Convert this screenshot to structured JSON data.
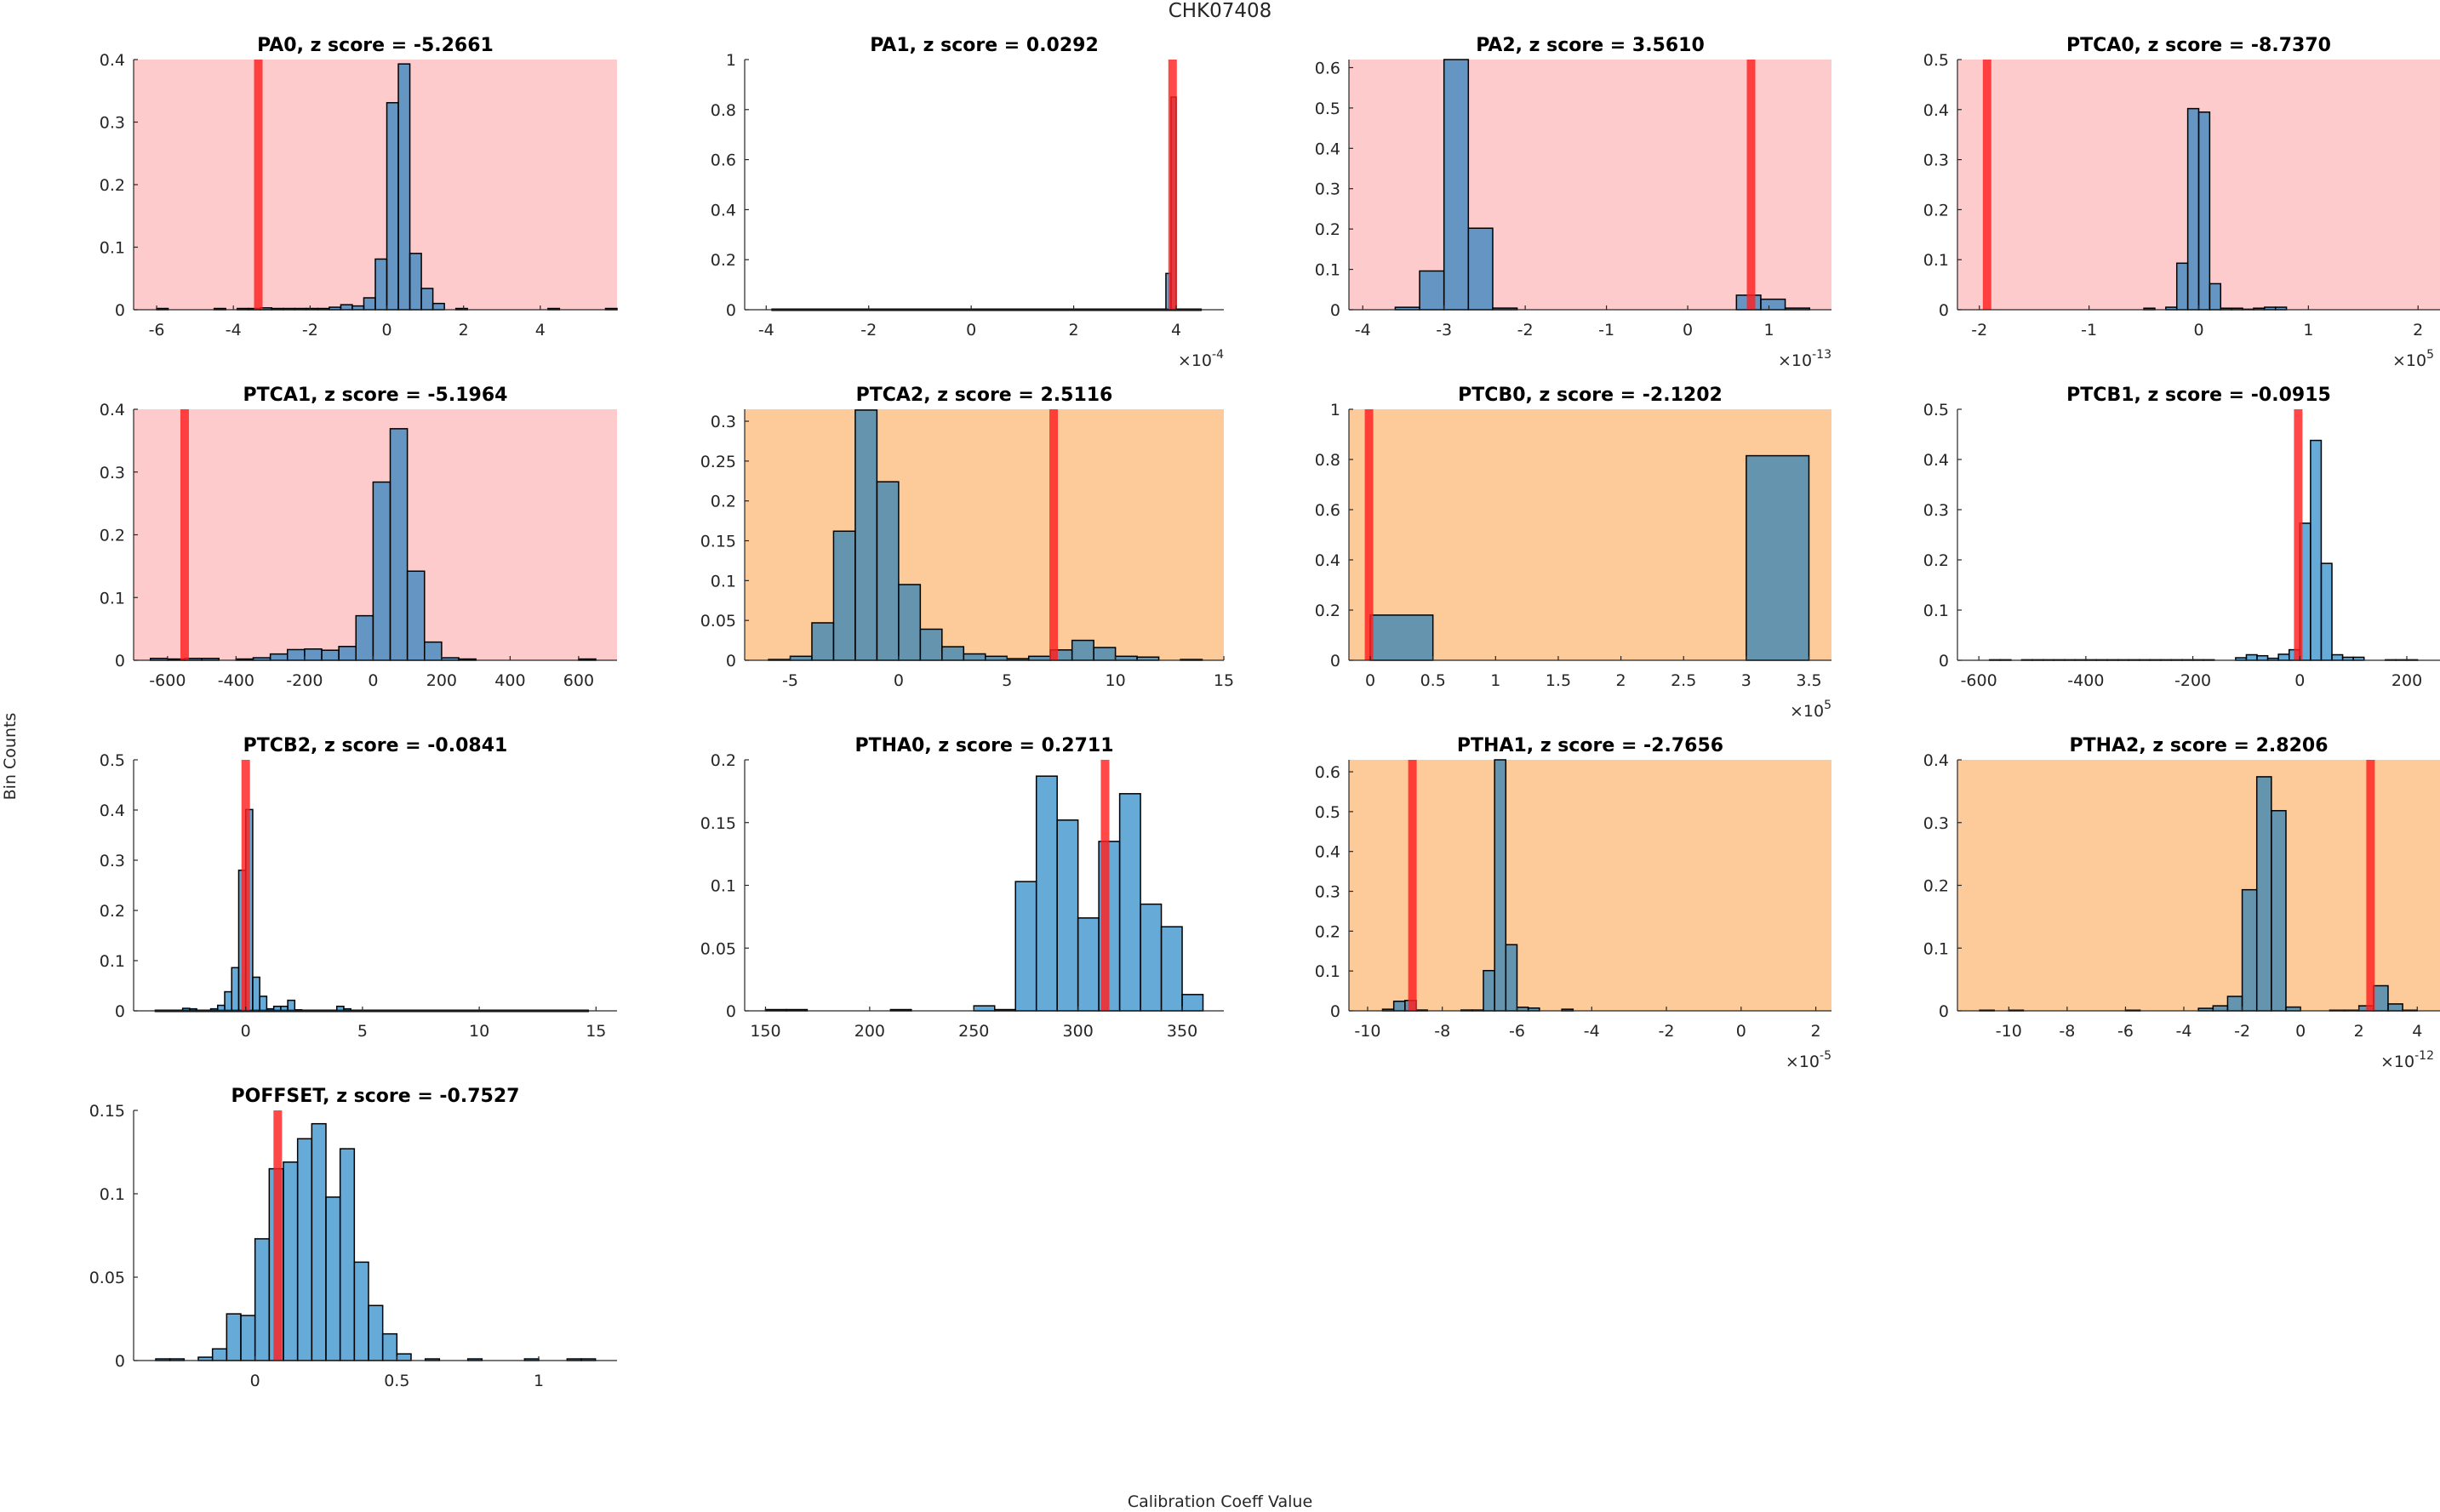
{
  "figure": {
    "title": "CHK07408",
    "ylabel": "Bin Counts",
    "xlabel": "Calibration Coeff Value"
  },
  "colors": {
    "bar": "#0072BD",
    "marker_line": "#ff2020",
    "bg_red": "#fdcbcb",
    "bg_orange": "#fdcb9a",
    "bg_none": "#ffffff"
  },
  "chart_data": [
    {
      "type": "bar",
      "name": "PA0",
      "title": "PA0, z score = -5.2661",
      "z_score": -5.2661,
      "status": "red",
      "xlim": [
        -6.6,
        6.0
      ],
      "ylim": [
        0,
        0.4
      ],
      "xticks": [
        -6,
        -4,
        -2,
        0,
        2,
        4
      ],
      "yticks": [
        0,
        0.1,
        0.2,
        0.3,
        0.4
      ],
      "ytick_labels": [
        "0",
        "0.1",
        "0.2",
        "0.3",
        "0.4"
      ],
      "exponent": "",
      "bin_start": -6.0,
      "bin_width": 0.3,
      "values": [
        0.002,
        0,
        0,
        0,
        0,
        0.002,
        0,
        0.002,
        0.002,
        0.003,
        0.002,
        0.002,
        0.002,
        0.002,
        0.002,
        0.004,
        0.008,
        0.006,
        0.019,
        0.081,
        0.331,
        0.393,
        0.09,
        0.034,
        0.01,
        0,
        0.002,
        0,
        0,
        0,
        0,
        0,
        0,
        0,
        0.002,
        0,
        0,
        0,
        0,
        0.002
      ],
      "marker": -3.35
    },
    {
      "type": "bar",
      "name": "PA1",
      "title": "PA1, z score = 0.0292",
      "z_score": 0.0292,
      "status": "none",
      "xlim": [
        -4.42,
        4.93
      ],
      "ylim": [
        0,
        1
      ],
      "xticks": [
        -4,
        -2,
        0,
        2,
        4
      ],
      "yticks": [
        0,
        0.2,
        0.4,
        0.6,
        0.8,
        1
      ],
      "ytick_labels": [
        "0",
        "0.2",
        "0.4",
        "0.6",
        "0.8",
        "1"
      ],
      "exponent": "-4",
      "bin_start": 3.8,
      "bin_width": 0.1,
      "values": [
        0.145,
        0.85,
        0,
        0,
        0,
        0
      ],
      "baseline_range": [
        -3.9,
        4.5
      ],
      "marker": 3.93
    },
    {
      "type": "bar",
      "name": "PA2",
      "title": "PA2, z score = 3.5610",
      "z_score": 3.561,
      "status": "red",
      "xlim": [
        -4.17,
        1.77
      ],
      "ylim": [
        0,
        0.62
      ],
      "xticks": [
        -4,
        -3,
        -2,
        -1,
        0,
        1
      ],
      "yticks": [
        0,
        0.1,
        0.2,
        0.3,
        0.4,
        0.5,
        0.6
      ],
      "ytick_labels": [
        "0",
        "0.1",
        "0.2",
        "0.3",
        "0.4",
        "0.5",
        "0.6"
      ],
      "exponent": "-13",
      "bin_start": -3.9,
      "bin_width": 0.3,
      "values": [
        0,
        0.006,
        0.096,
        0.62,
        0.202,
        0.004,
        0,
        0,
        0,
        0,
        0,
        0,
        0,
        0,
        0,
        0.036,
        0.026,
        0.004
      ],
      "marker": 0.78
    },
    {
      "type": "bar",
      "name": "PTCA0",
      "title": "PTCA0, z score = -8.7370",
      "z_score": -8.737,
      "status": "red",
      "xlim": [
        -2.2,
        2.2
      ],
      "ylim": [
        0,
        0.5
      ],
      "xticks": [
        -2,
        -1,
        0,
        1,
        2
      ],
      "yticks": [
        0,
        0.1,
        0.2,
        0.3,
        0.4,
        0.5
      ],
      "ytick_labels": [
        "0",
        "0.1",
        "0.2",
        "0.3",
        "0.4",
        "0.5"
      ],
      "exponent": "5",
      "bin_start": -1.9,
      "bin_width": 0.1,
      "values": [
        0,
        0,
        0,
        0,
        0,
        0,
        0,
        0,
        0,
        0,
        0,
        0,
        0,
        0,
        0.003,
        0,
        0.005,
        0.093,
        0.402,
        0.395,
        0.052,
        0.003,
        0.003,
        0.001,
        0.003,
        0.005,
        0.005,
        0,
        0,
        0,
        0,
        0,
        0,
        0,
        0,
        0,
        0,
        0,
        0
      ],
      "marker": -1.93
    },
    {
      "type": "bar",
      "name": "PTCA1",
      "title": "PTCA1, z score = -5.1964",
      "z_score": -5.1964,
      "status": "red",
      "xlim": [
        -699,
        712
      ],
      "ylim": [
        0,
        0.4
      ],
      "xticks": [
        -600,
        -400,
        -200,
        0,
        200,
        400,
        600
      ],
      "yticks": [
        0,
        0.1,
        0.2,
        0.3,
        0.4
      ],
      "ytick_labels": [
        "0",
        "0.1",
        "0.2",
        "0.3",
        "0.4"
      ],
      "exponent": "",
      "bin_start": -650,
      "bin_width": 50,
      "values": [
        0.003,
        0.002,
        0.003,
        0.003,
        0,
        0.002,
        0.004,
        0.01,
        0.017,
        0.018,
        0.016,
        0.022,
        0.071,
        0.284,
        0.369,
        0.142,
        0.029,
        0.004,
        0.002,
        0,
        0,
        0,
        0,
        0,
        0,
        0.002
      ],
      "marker": -550
    },
    {
      "type": "bar",
      "name": "PTCA2",
      "title": "PTCA2, z score = 2.5116",
      "z_score": 2.5116,
      "status": "orange",
      "xlim": [
        -7.1,
        15
      ],
      "ylim": [
        0,
        0.315
      ],
      "xticks": [
        -5,
        0,
        5,
        10,
        15
      ],
      "yticks": [
        0,
        0.05,
        0.1,
        0.15,
        0.2,
        0.25,
        0.3
      ],
      "ytick_labels": [
        "0",
        "0.05",
        "0.1",
        "0.15",
        "0.2",
        "0.25",
        "0.3"
      ],
      "exponent": "",
      "bin_start": -6,
      "bin_width": 1,
      "values": [
        0.001,
        0.005,
        0.047,
        0.162,
        0.314,
        0.224,
        0.095,
        0.039,
        0.017,
        0.008,
        0.005,
        0.002,
        0.005,
        0.013,
        0.025,
        0.016,
        0.005,
        0.004,
        0,
        0.001
      ],
      "marker": 7.15
    },
    {
      "type": "bar",
      "name": "PTCB0",
      "title": "PTCB0, z score = -2.1202",
      "z_score": -2.1202,
      "status": "orange",
      "xlim": [
        -0.17,
        3.68
      ],
      "ylim": [
        0,
        1
      ],
      "xticks": [
        0,
        0.5,
        1,
        1.5,
        2,
        2.5,
        3,
        3.5
      ],
      "yticks": [
        0,
        0.2,
        0.4,
        0.6,
        0.8,
        1
      ],
      "ytick_labels": [
        "0",
        "0.2",
        "0.4",
        "0.6",
        "0.8",
        "1"
      ],
      "exponent": "5",
      "bin_start": 0,
      "bin_width": 0.5,
      "values": [
        0.18,
        0,
        0,
        0,
        0,
        0,
        0.815
      ],
      "marker": -0.01
    },
    {
      "type": "bar",
      "name": "PTCB1",
      "title": "PTCB1, z score = -0.0915",
      "z_score": -0.0915,
      "status": "none",
      "xlim": [
        -640,
        262
      ],
      "ylim": [
        0,
        0.5
      ],
      "xticks": [
        -600,
        -400,
        -200,
        0,
        200
      ],
      "yticks": [
        0,
        0.1,
        0.2,
        0.3,
        0.4,
        0.5
      ],
      "ytick_labels": [
        "0",
        "0.1",
        "0.2",
        "0.3",
        "0.4",
        "0.5"
      ],
      "exponent": "",
      "bin_start": -580,
      "bin_width": 20,
      "values": [
        0.001,
        0.001,
        0,
        0.001,
        0.001,
        0.001,
        0.001,
        0.001,
        0.001,
        0.001,
        0.001,
        0.001,
        0.001,
        0.001,
        0.001,
        0.001,
        0.001,
        0.001,
        0.001,
        0.001,
        0.001,
        0,
        0,
        0.005,
        0.011,
        0.009,
        0.004,
        0.012,
        0.021,
        0.273,
        0.438,
        0.193,
        0.011,
        0.006,
        0.006,
        0,
        0,
        0.001,
        0.001,
        0.001,
        0
      ],
      "marker": -3
    },
    {
      "type": "bar",
      "name": "PTCB2",
      "title": "PTCB2, z score = -0.0841",
      "z_score": -0.0841,
      "status": "none",
      "xlim": [
        -4.8,
        15.9
      ],
      "ylim": [
        0,
        0.5
      ],
      "xticks": [
        0,
        5,
        10,
        15
      ],
      "yticks": [
        0,
        0.1,
        0.2,
        0.3,
        0.4,
        0.5
      ],
      "ytick_labels": [
        "0",
        "0.1",
        "0.2",
        "0.3",
        "0.4",
        "0.5"
      ],
      "exponent": "",
      "bin_start": -2.7,
      "bin_width": 0.3,
      "values": [
        0.005,
        0.004,
        0,
        0.001,
        0.004,
        0.011,
        0.038,
        0.086,
        0.28,
        0.401,
        0.067,
        0.029,
        0.004,
        0.009,
        0.009,
        0.021,
        0.002,
        0,
        0,
        0,
        0,
        0,
        0.009,
        0.004
      ],
      "baseline_range": [
        -3.9,
        14.7
      ],
      "marker": 0.0
    },
    {
      "type": "bar",
      "name": "PTHA0",
      "title": "PTHA0, z score = 0.2711",
      "z_score": 0.2711,
      "status": "none",
      "xlim": [
        140,
        370
      ],
      "ylim": [
        0,
        0.2
      ],
      "xticks": [
        150,
        200,
        250,
        300,
        350
      ],
      "yticks": [
        0,
        0.05,
        0.1,
        0.15,
        0.2
      ],
      "ytick_labels": [
        "0",
        "0.05",
        "0.1",
        "0.15",
        "0.2"
      ],
      "exponent": "",
      "bin_start": 150,
      "bin_width": 10,
      "values": [
        0.001,
        0.001,
        0,
        0,
        0,
        0,
        0.001,
        0,
        0,
        0,
        0.004,
        0.001,
        0.103,
        0.187,
        0.152,
        0.074,
        0.135,
        0.173,
        0.085,
        0.067,
        0.013
      ],
      "marker": 313
    },
    {
      "type": "bar",
      "name": "PTHA1",
      "title": "PTHA1, z score = -2.7656",
      "z_score": -2.7656,
      "status": "orange",
      "xlim": [
        -10.5,
        2.42
      ],
      "ylim": [
        0,
        0.63
      ],
      "xticks": [
        -10,
        -8,
        -6,
        -4,
        -2,
        0,
        2
      ],
      "yticks": [
        0,
        0.1,
        0.2,
        0.3,
        0.4,
        0.5,
        0.6
      ],
      "ytick_labels": [
        "0",
        "0.1",
        "0.2",
        "0.3",
        "0.4",
        "0.5",
        "0.6"
      ],
      "exponent": "-5",
      "bin_start": -9.6,
      "bin_width": 0.3,
      "values": [
        0.004,
        0.024,
        0.026,
        0.002,
        0,
        0,
        0,
        0.002,
        0.002,
        0.101,
        0.63,
        0.166,
        0.009,
        0.007,
        0,
        0,
        0.004,
        0,
        0,
        0,
        0,
        0,
        0,
        0,
        0,
        0,
        0,
        0,
        0,
        0,
        0,
        0,
        0,
        0,
        0,
        0,
        0,
        0
      ],
      "marker": -8.8
    },
    {
      "type": "bar",
      "name": "PTHA2",
      "title": "PTHA2, z score = 2.8206",
      "z_score": 2.8206,
      "status": "orange",
      "xlim": [
        -11.76,
        4.78
      ],
      "ylim": [
        0,
        0.4
      ],
      "xticks": [
        -10,
        -8,
        -6,
        -4,
        -2,
        0,
        2,
        4
      ],
      "yticks": [
        0,
        0.1,
        0.2,
        0.3,
        0.4
      ],
      "ytick_labels": [
        "0",
        "0.1",
        "0.2",
        "0.3",
        "0.4"
      ],
      "exponent": "-12",
      "bin_start": -11,
      "bin_width": 0.5,
      "values": [
        0.001,
        0,
        0.001,
        0,
        0,
        0,
        0,
        0,
        0,
        0,
        0.001,
        0,
        0,
        0,
        0,
        0.004,
        0.008,
        0.023,
        0.193,
        0.373,
        0.319,
        0.006,
        0,
        0,
        0.001,
        0.001,
        0.008,
        0.04,
        0.011,
        0.001
      ],
      "marker": 2.4
    },
    {
      "type": "bar",
      "name": "POFFSET",
      "title": "POFFSET, z score = -0.7527",
      "z_score": -0.7527,
      "status": "none",
      "xlim": [
        -0.428,
        1.276
      ],
      "ylim": [
        0,
        0.15
      ],
      "xticks": [
        0,
        0.5,
        1
      ],
      "yticks": [
        0,
        0.05,
        0.1,
        0.15
      ],
      "ytick_labels": [
        "0",
        "0.05",
        "0.1",
        "0.15"
      ],
      "exponent": "",
      "bin_start": -0.35,
      "bin_width": 0.05,
      "values": [
        0.001,
        0.001,
        0,
        0.002,
        0.007,
        0.028,
        0.027,
        0.073,
        0.115,
        0.119,
        0.133,
        0.142,
        0.098,
        0.127,
        0.059,
        0.033,
        0.016,
        0.004,
        0,
        0.001,
        0,
        0,
        0.001,
        0,
        0,
        0,
        0.001,
        0,
        0,
        0.001,
        0.001
      ],
      "marker": 0.08
    }
  ]
}
